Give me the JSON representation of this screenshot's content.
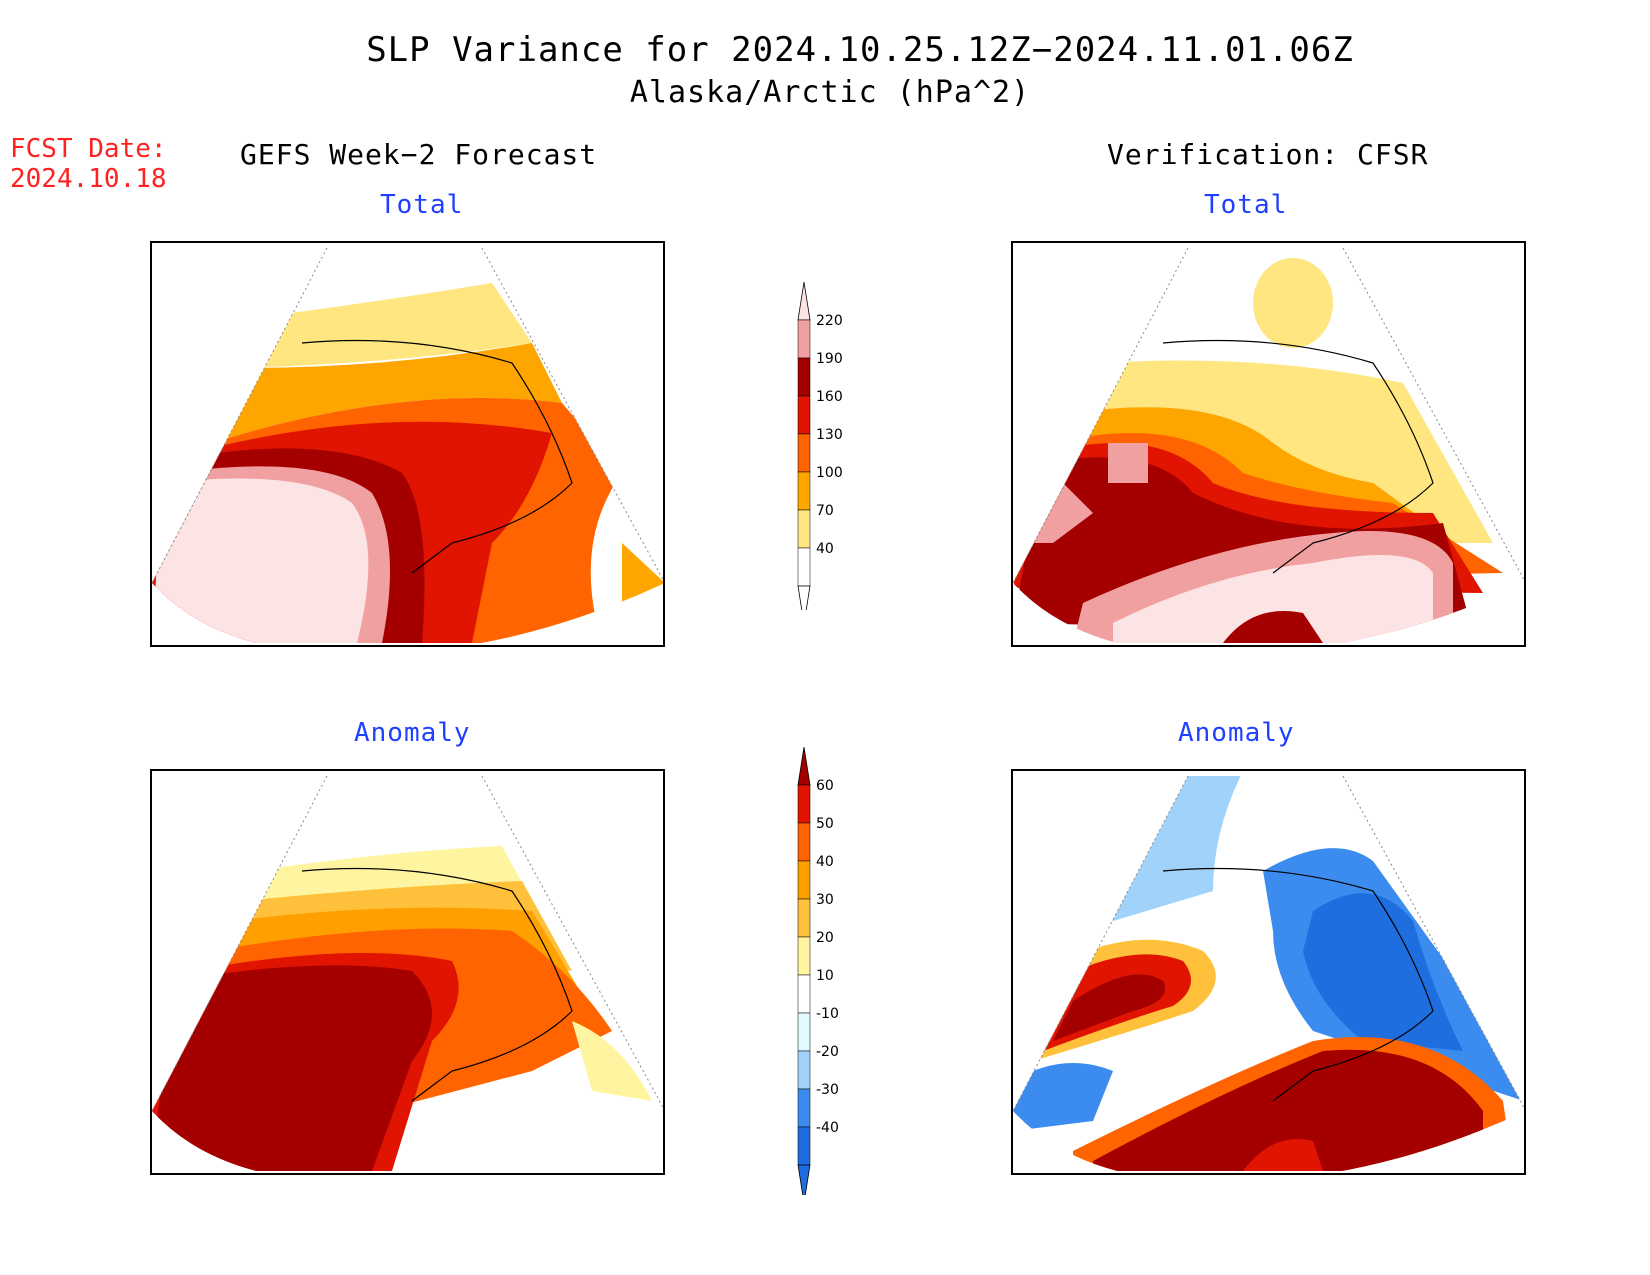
{
  "title": {
    "line1": "SLP Variance for 2024.10.25.12Z−2024.11.01.06Z",
    "line2": "Alaska/Arctic (hPa^2)"
  },
  "fcst_date": {
    "label": "FCST Date:",
    "value": "2024.10.18"
  },
  "columns": {
    "left_header": "GEFS Week−2 Forecast",
    "right_header": "Verification: CFSR"
  },
  "panels": {
    "forecast_total_label": "Total",
    "forecast_anomaly_label": "Anomaly",
    "verification_total_label": "Total",
    "verification_anomaly_label": "Anomaly"
  },
  "colorbars": {
    "total": {
      "levels": [
        "40",
        "70",
        "100",
        "130",
        "160",
        "190",
        "220"
      ],
      "colors": [
        "#ffe680",
        "#ffa500",
        "#ff6400",
        "#e01400",
        "#a50000",
        "#f0a0a0",
        "#fde4e4"
      ],
      "below_color": "#ffffff"
    },
    "anomaly": {
      "levels": [
        "-40",
        "-30",
        "-20",
        "-10",
        "10",
        "20",
        "30",
        "40",
        "50",
        "60"
      ],
      "colors": [
        "#1e6ee0",
        "#3c8cf0",
        "#a0d2fa",
        "#e1faff",
        "#ffffff",
        "#fff5a0",
        "#ffc03c",
        "#ffa000",
        "#ff6400",
        "#e11400",
        "#a50000"
      ]
    }
  },
  "colors": {
    "fcst_date": "#ff2020",
    "subtitle": "#2040ff",
    "border": "#000000"
  }
}
